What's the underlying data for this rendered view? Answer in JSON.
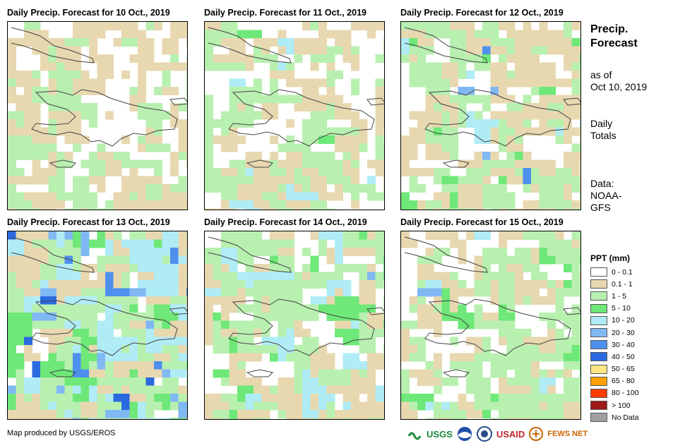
{
  "panels": [
    {
      "title": "Daily Precip. Forecast for 10 Oct., 2019",
      "seed": 11,
      "dist": [
        0.38,
        0.4,
        0.22,
        0.0,
        0.0,
        0.0,
        0.0,
        0.0
      ]
    },
    {
      "title": "Daily Precip. Forecast for 11 Oct., 2019",
      "seed": 23,
      "dist": [
        0.3,
        0.36,
        0.3,
        0.02,
        0.02,
        0.0,
        0.0,
        0.0
      ]
    },
    {
      "title": "Daily Precip. Forecast for 12 Oct., 2019",
      "seed": 37,
      "dist": [
        0.22,
        0.38,
        0.3,
        0.04,
        0.04,
        0.01,
        0.01,
        0.0
      ]
    },
    {
      "title": "Daily Precip. Forecast for 13 Oct., 2019",
      "seed": 41,
      "dist": [
        0.1,
        0.18,
        0.3,
        0.1,
        0.2,
        0.07,
        0.03,
        0.02
      ]
    },
    {
      "title": "Daily Precip. Forecast for 14 Oct., 2019",
      "seed": 53,
      "dist": [
        0.14,
        0.3,
        0.38,
        0.08,
        0.08,
        0.02,
        0.0,
        0.0
      ]
    },
    {
      "title": "Daily Precip. Forecast for 15 Oct., 2019",
      "seed": 67,
      "dist": [
        0.18,
        0.26,
        0.44,
        0.08,
        0.03,
        0.01,
        0.0,
        0.0
      ]
    }
  ],
  "side": {
    "title_line1": "Precip.",
    "title_line2": "Forecast",
    "asof_line1": "as of",
    "asof_line2": "Oct 10, 2019",
    "totals_line1": "Daily",
    "totals_line2": "Totals",
    "data_line1": "Data:",
    "data_line2": "NOAA-",
    "data_line3": "GFS"
  },
  "legend": {
    "title": "PPT (mm)",
    "items": [
      {
        "label": "0 - 0.1",
        "color": "#ffffff"
      },
      {
        "label": "0.1 - 1",
        "color": "#e8d8b0"
      },
      {
        "label": "1 - 5",
        "color": "#b8f0b0"
      },
      {
        "label": "5 - 10",
        "color": "#6ee878"
      },
      {
        "label": "10 - 20",
        "color": "#b0ecf6"
      },
      {
        "label": "20 - 30",
        "color": "#80b8f4"
      },
      {
        "label": "30 - 40",
        "color": "#4e90ee"
      },
      {
        "label": "40 - 50",
        "color": "#2a6ae0"
      },
      {
        "label": "50 - 65",
        "color": "#ffe680"
      },
      {
        "label": "65 - 80",
        "color": "#ffa000"
      },
      {
        "label": "80 - 100",
        "color": "#ff3c00"
      },
      {
        "label": "> 100",
        "color": "#a01818"
      },
      {
        "label": "No Data",
        "color": "#a0a0a0"
      }
    ]
  },
  "credit": "Map produced by USGS/EROS",
  "logos": {
    "usgs": "USGS",
    "usaid": "USAID",
    "fewsnet": "FEWS NET"
  }
}
